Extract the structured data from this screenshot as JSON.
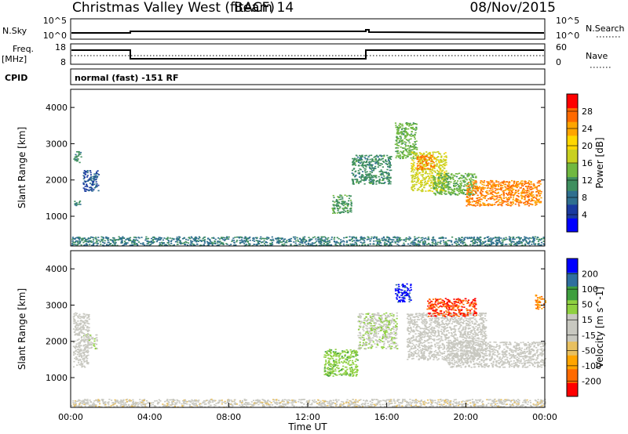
{
  "header": {
    "title": "Christmas Valley West (fitACF)",
    "beam": "Beam 14",
    "date": "08/Nov/2015"
  },
  "top_panels": {
    "nsky_label": "N.Sky",
    "nsky_ticks": [
      "10^5",
      "10^0"
    ],
    "nsearch_label": "N.Search",
    "nsearch_ticks": [
      "10^5",
      "10^0"
    ],
    "freq_label": "Freq.",
    "freq_unit": "[MHz]",
    "freq_ticks": [
      "18",
      "8"
    ],
    "nave_label": "Nave",
    "nave_ticks": [
      "60",
      "0"
    ],
    "cpid_label": "CPID",
    "cpid_text": "normal (fast) -151 RF"
  },
  "colors": {
    "power": [
      "#0000ff",
      "#1a3aa0",
      "#2f6f8f",
      "#3f8f5f",
      "#70b840",
      "#c8d020",
      "#ffd700",
      "#ffa500",
      "#ff6a00",
      "#ff0000"
    ],
    "velocity": [
      "#ff0000",
      "#ff6a00",
      "#ffa500",
      "#e8c060",
      "#c8c8c0",
      "#c8c8c0",
      "#8fd040",
      "#3f9f3f",
      "#2f6f9f",
      "#0000ff"
    ]
  },
  "chart_data": [
    {
      "type": "heatmap",
      "name": "power",
      "ylabel": "Slant Range [km]",
      "yticks": [
        "1000",
        "2000",
        "3000",
        "4000"
      ],
      "ylim": [
        180,
        4500
      ],
      "colorbar_label": "Power [dB]",
      "colorbar_ticks": [
        "4",
        "8",
        "12",
        "16",
        "20",
        "24",
        "28"
      ],
      "colorbar_range": [
        0,
        32
      ],
      "regions": [
        {
          "t0": 0.1,
          "t1": 0.5,
          "r0": 1300,
          "r1": 1450,
          "value": 10
        },
        {
          "t0": 0.1,
          "t1": 0.5,
          "r0": 2500,
          "r1": 2800,
          "value": 11
        },
        {
          "t0": 0.6,
          "t1": 1.4,
          "r0": 1700,
          "r1": 2300,
          "value": 6
        },
        {
          "t0": 0.0,
          "t1": 24.0,
          "r0": 200,
          "r1": 450,
          "value": 9
        },
        {
          "t0": 13.2,
          "t1": 14.2,
          "r0": 1100,
          "r1": 1600,
          "value": 12
        },
        {
          "t0": 14.2,
          "t1": 16.2,
          "r0": 1900,
          "r1": 2700,
          "value": 11
        },
        {
          "t0": 16.4,
          "t1": 17.5,
          "r0": 2600,
          "r1": 3600,
          "value": 14
        },
        {
          "t0": 17.2,
          "t1": 19.0,
          "r0": 1700,
          "r1": 2800,
          "value": 18
        },
        {
          "t0": 17.5,
          "t1": 18.4,
          "r0": 2300,
          "r1": 2700,
          "value": 26
        },
        {
          "t0": 18.3,
          "t1": 20.5,
          "r0": 1600,
          "r1": 2200,
          "value": 14
        },
        {
          "t0": 20.0,
          "t1": 23.8,
          "r0": 1300,
          "r1": 2000,
          "value": 26
        }
      ]
    },
    {
      "type": "heatmap",
      "name": "velocity",
      "ylabel": "Slant Range [km]",
      "yticks": [
        "1000",
        "2000",
        "3000",
        "4000"
      ],
      "ylim": [
        180,
        4500
      ],
      "xlabel": "Time UT",
      "xticks": [
        "00:00",
        "04:00",
        "08:00",
        "12:00",
        "16:00",
        "20:00",
        "00:00"
      ],
      "xlim": [
        0,
        24
      ],
      "colorbar_label": "Velocity [m s^-1]",
      "colorbar_ticks": [
        "-200",
        "-100",
        "-50",
        "-15",
        "15",
        "50",
        "100",
        "200"
      ],
      "colorbar_range": [
        -250,
        250
      ],
      "regions": [
        {
          "t0": 0.1,
          "t1": 0.9,
          "r0": 1300,
          "r1": 2800,
          "value": 0
        },
        {
          "t0": 0.6,
          "t1": 1.3,
          "r0": 1800,
          "r1": 2200,
          "value": 30
        },
        {
          "t0": 0.0,
          "t1": 24.0,
          "r0": 200,
          "r1": 420,
          "value": -30
        },
        {
          "t0": 12.8,
          "t1": 14.5,
          "r0": 1050,
          "r1": 1800,
          "value": 80
        },
        {
          "t0": 14.5,
          "t1": 16.5,
          "r0": 1800,
          "r1": 2800,
          "value": 40
        },
        {
          "t0": 16.4,
          "t1": 17.2,
          "r0": 3100,
          "r1": 3600,
          "value": 220
        },
        {
          "t0": 17.0,
          "t1": 21.0,
          "r0": 1500,
          "r1": 2800,
          "value": 0
        },
        {
          "t0": 19.0,
          "t1": 24.0,
          "r0": 1300,
          "r1": 2000,
          "value": 0
        },
        {
          "t0": 18.0,
          "t1": 20.5,
          "r0": 2700,
          "r1": 3200,
          "value": -200
        },
        {
          "t0": 23.5,
          "t1": 24.0,
          "r0": 2900,
          "r1": 3300,
          "value": -150
        }
      ]
    }
  ]
}
